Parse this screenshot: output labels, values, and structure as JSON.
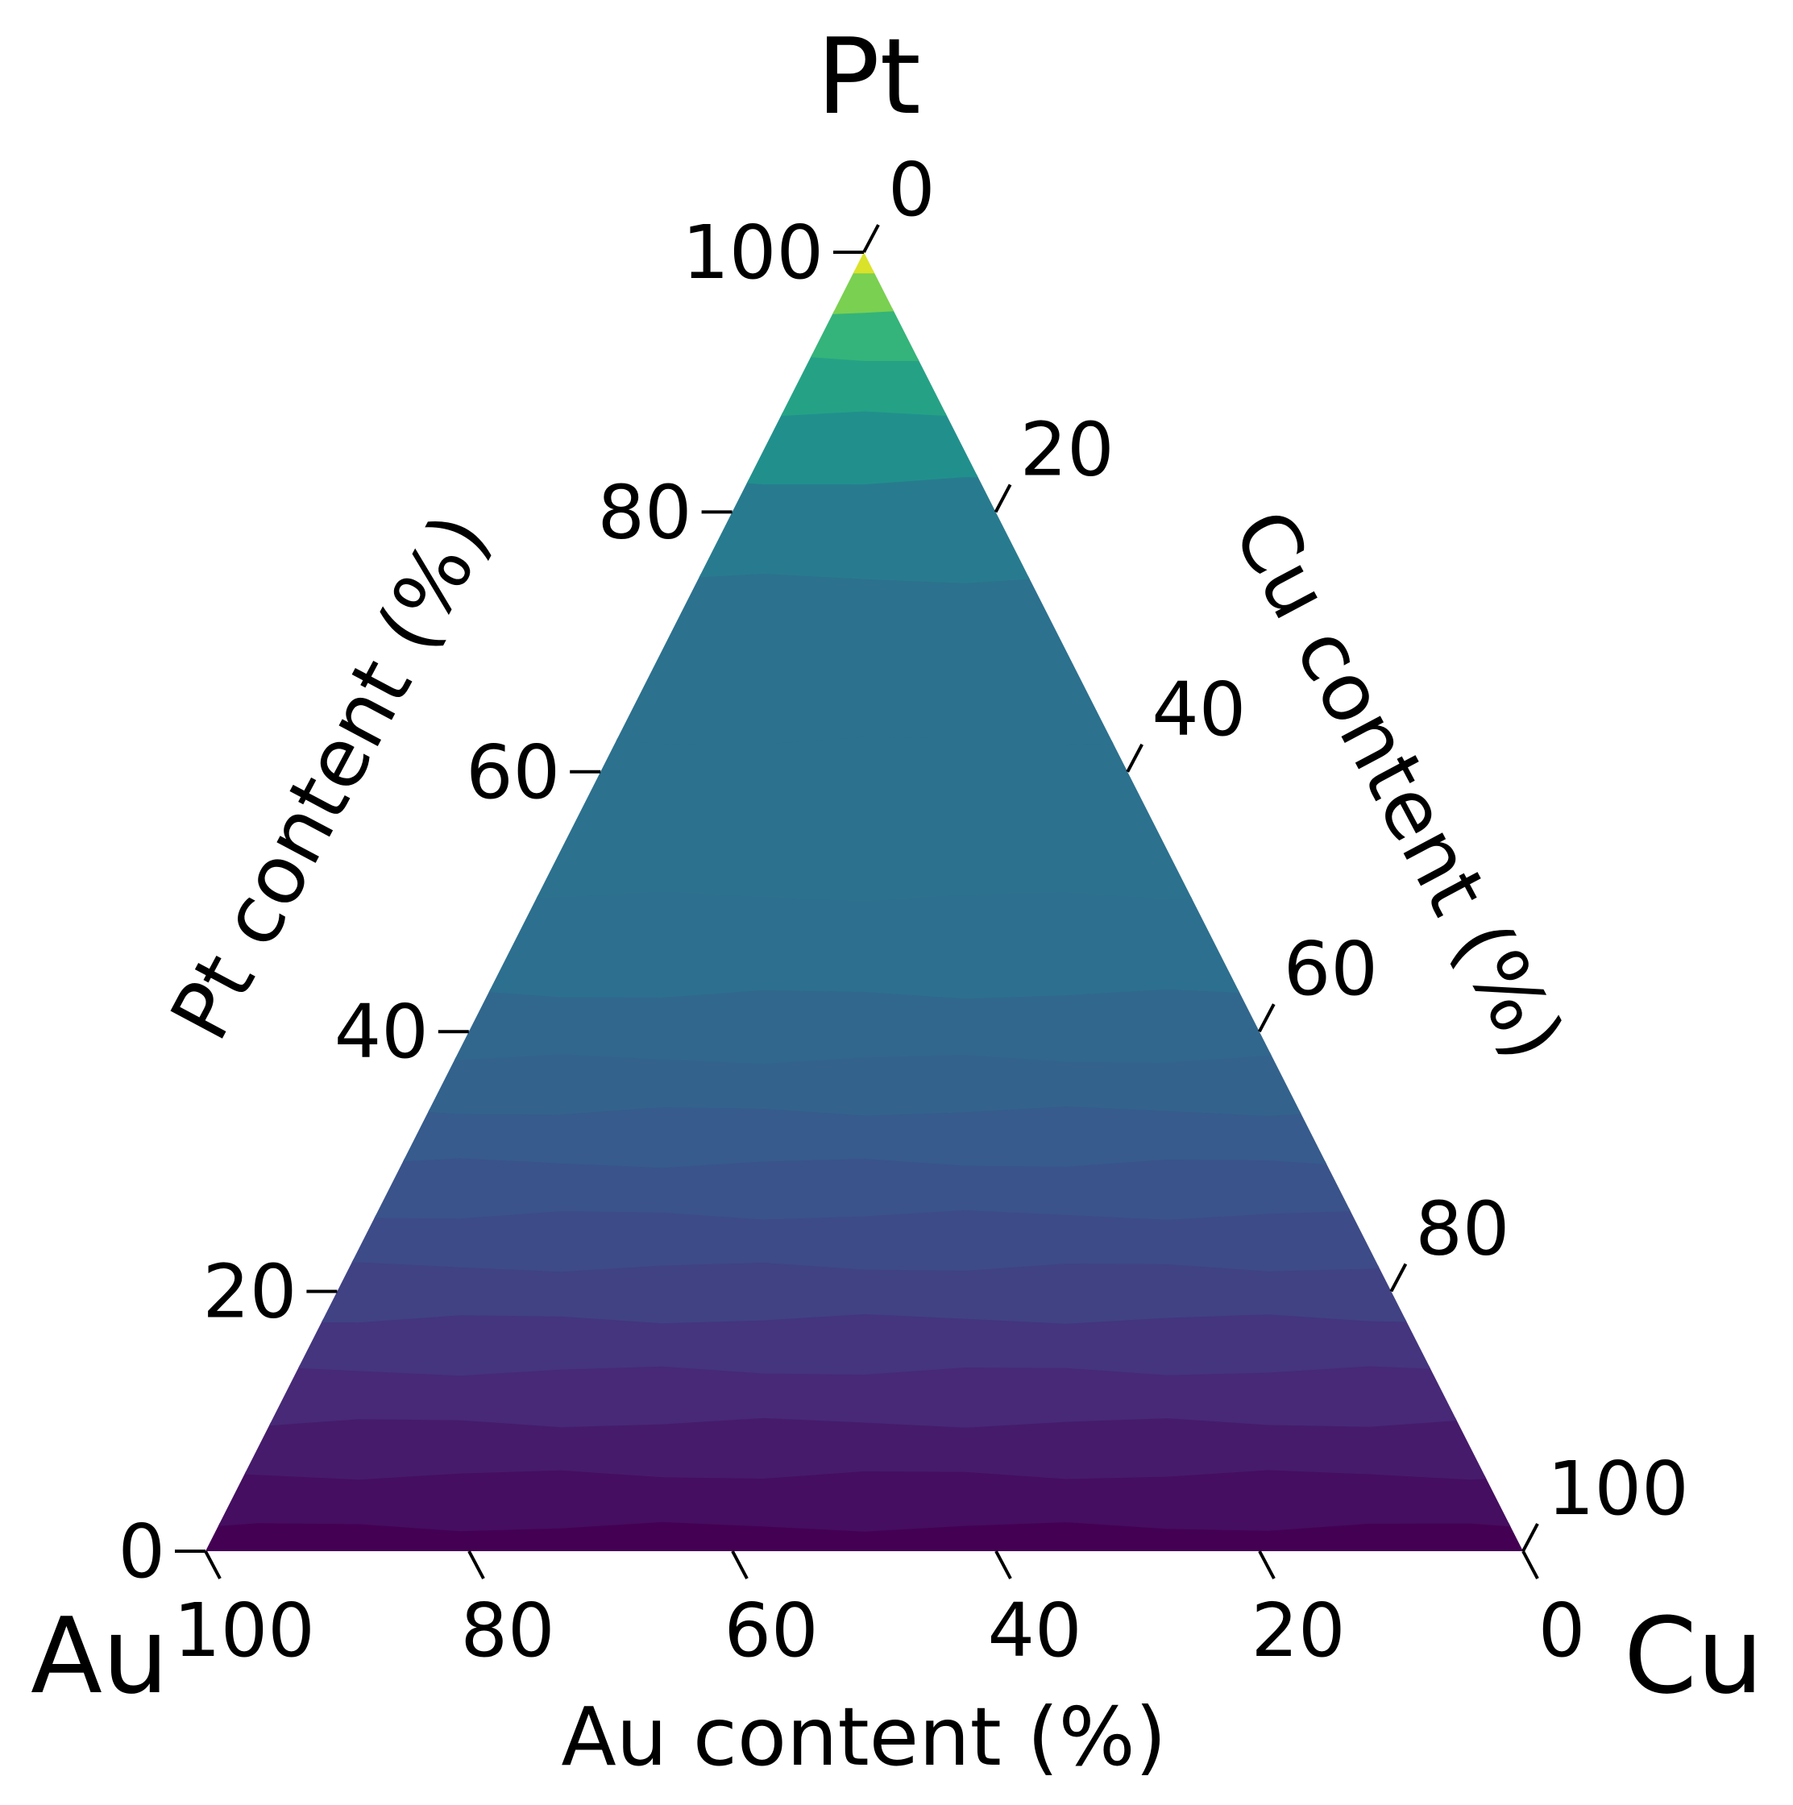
{
  "chart_data": {
    "type": "ternary-contour",
    "vertices": {
      "top": "Pt",
      "left": "Au",
      "right": "Cu"
    },
    "axes": {
      "bottom": {
        "label": "Au content (%)",
        "ticks": [
          100,
          80,
          60,
          40,
          20,
          0
        ]
      },
      "left": {
        "label": "Pt content (%)",
        "ticks": [
          0,
          20,
          40,
          60,
          80,
          100
        ]
      },
      "right": {
        "label": "Cu content (%)",
        "ticks": [
          0,
          20,
          40,
          60,
          80,
          100
        ]
      }
    },
    "colormap": "viridis",
    "contour_levels": 20,
    "trend": "value increases with Pt content; lowest along the Au–Cu edge, highest at the Pt vertex",
    "level_by_pt_content": [
      {
        "pt": 0,
        "level": 0.0
      },
      {
        "pt": 4,
        "level": 0.04
      },
      {
        "pt": 8,
        "level": 0.08
      },
      {
        "pt": 12,
        "level": 0.12
      },
      {
        "pt": 16,
        "level": 0.16
      },
      {
        "pt": 20,
        "level": 0.2
      },
      {
        "pt": 24,
        "level": 0.23
      },
      {
        "pt": 28,
        "level": 0.26
      },
      {
        "pt": 32,
        "level": 0.29
      },
      {
        "pt": 36,
        "level": 0.32
      },
      {
        "pt": 40,
        "level": 0.34
      },
      {
        "pt": 46,
        "level": 0.37
      },
      {
        "pt": 55,
        "level": 0.38
      },
      {
        "pt": 70,
        "level": 0.38
      },
      {
        "pt": 80,
        "level": 0.42
      },
      {
        "pt": 85,
        "level": 0.5
      },
      {
        "pt": 90,
        "level": 0.58
      },
      {
        "pt": 94,
        "level": 0.66
      },
      {
        "pt": 97,
        "level": 0.8
      },
      {
        "pt": 100,
        "level": 0.95
      }
    ]
  }
}
